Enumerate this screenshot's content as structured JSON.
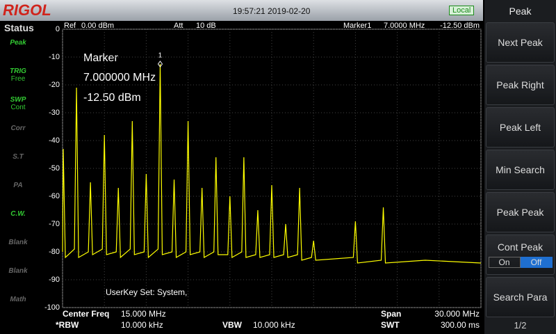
{
  "header": {
    "logo": "RIGOL",
    "datetime": "19:57:21 2019-02-20",
    "mode": "Local"
  },
  "status": {
    "title": "Status",
    "items": [
      {
        "top": "Peak",
        "bottom": null
      },
      {
        "top": "TRIG",
        "bottom": "Free"
      },
      {
        "top": "SWP",
        "bottom": "Cont"
      },
      {
        "top": "Corr",
        "bottom": null
      },
      {
        "top": "S.T",
        "bottom": null
      },
      {
        "top": "PA",
        "bottom": null
      },
      {
        "top": "C.W.",
        "bottom": null
      },
      {
        "top": "Blank",
        "bottom": null
      },
      {
        "top": "Blank",
        "bottom": null
      },
      {
        "top": "Math",
        "bottom": null
      }
    ]
  },
  "plot": {
    "ref_label": "Ref",
    "ref": "0.00 dBm",
    "att_label": "Att",
    "att": "10 dB",
    "marker_label": "Marker1",
    "marker_freq": "7.0000 MHz",
    "marker_level": "-12.50 dBm",
    "marker_box": [
      "Marker",
      "7.000000 MHz",
      "-12.50 dBm"
    ],
    "userkey": "UserKey Set:   System,"
  },
  "spectrum": {
    "type": "line",
    "color": "#ffff00",
    "xlim": [
      0,
      30
    ],
    "ylim": [
      -100,
      0
    ],
    "xticks": [
      0,
      3,
      6,
      9,
      12,
      15,
      18,
      21,
      24,
      27,
      30
    ],
    "yticks": [
      0,
      -10,
      -20,
      -30,
      -40,
      -50,
      -60,
      -70,
      -80,
      -90,
      -100
    ],
    "grid": true,
    "x": [
      0,
      0.05,
      0.2,
      0.85,
      1,
      1.15,
      1.85,
      2,
      2.15,
      2.85,
      3,
      3.15,
      3.85,
      4,
      4.15,
      4.85,
      5,
      5.15,
      5.85,
      6,
      6.15,
      6.85,
      7,
      7.15,
      7.85,
      8,
      8.15,
      8.85,
      9,
      9.15,
      9.85,
      10,
      10.15,
      10.85,
      11,
      11.15,
      11.85,
      12,
      12.15,
      12.85,
      13,
      13.15,
      13.85,
      14,
      14.15,
      14.85,
      15,
      15.15,
      15.85,
      16,
      16.15,
      16.85,
      17,
      17.15,
      17.85,
      18,
      18.15,
      20.85,
      21,
      21.15,
      22.85,
      23,
      23.15,
      26,
      30
    ],
    "values": [
      -80,
      -43,
      -82,
      -79,
      -21,
      -82,
      -80,
      -55,
      -81,
      -79,
      -38,
      -81,
      -80,
      -57,
      -82,
      -79,
      -33,
      -81,
      -80,
      -52,
      -82,
      -79,
      -12.5,
      -81,
      -80,
      -54,
      -82,
      -80,
      -33,
      -81,
      -80,
      -57,
      -82,
      -80,
      -46,
      -81,
      -81,
      -60,
      -82,
      -80,
      -46,
      -82,
      -81,
      -65,
      -82,
      -81,
      -56,
      -82,
      -81,
      -70,
      -82,
      -81,
      -57,
      -83,
      -82,
      -76,
      -83,
      -82,
      -69,
      -84,
      -83,
      -64,
      -84,
      -83,
      -84
    ],
    "marker": {
      "label": "1",
      "x": 7,
      "value": -12.5
    }
  },
  "settings": {
    "center_label": "Center Freq",
    "center": "15.000 MHz",
    "span_label": "Span",
    "span": "30.000 MHz",
    "rbw_label": "*RBW",
    "rbw": "10.000 kHz",
    "vbw_label": "VBW",
    "vbw": "10.000 kHz",
    "swt_label": "SWT",
    "swt": "300.00 ms"
  },
  "menu": {
    "title": "Peak",
    "buttons": [
      "Next Peak",
      "Peak Right",
      "Peak Left",
      "Min Search",
      "Peak Peak"
    ],
    "cont_peak": "Cont Peak",
    "on": "On",
    "off": "Off",
    "search_para": "Search Para",
    "page": "1/2"
  }
}
